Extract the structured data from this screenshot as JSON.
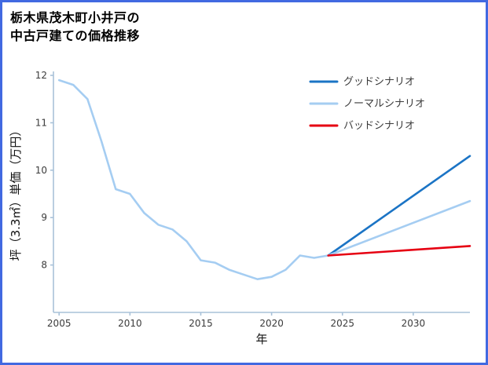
{
  "title": {
    "line1": "栃木県茂木町小井戸の",
    "line2": "中古戸建ての価格推移"
  },
  "colors": {
    "border": "#4169e1",
    "axis": "#a9c2d9",
    "good": "#1b74c5",
    "normal": "#a5cdf2",
    "bad": "#e60012"
  },
  "chart_data": {
    "type": "line",
    "title": "栃木県茂木町小井戸の中古戸建ての価格推移",
    "xlabel": "年",
    "ylabel": "坪（3.3㎡）単価（万円）",
    "xlim": [
      2004.6,
      2034
    ],
    "ylim": [
      7.0,
      12.05
    ],
    "xticks": [
      2005,
      2010,
      2015,
      2020,
      2025,
      2030
    ],
    "yticks": [
      8,
      9,
      10,
      11,
      12
    ],
    "grid": false,
    "legend_position": "upper right",
    "series": [
      {
        "id": "history",
        "color": "#a5cdf2",
        "legend": false,
        "x": [
          2005,
          2006,
          2007,
          2008,
          2009,
          2010,
          2011,
          2012,
          2013,
          2014,
          2015,
          2016,
          2017,
          2018,
          2019,
          2020,
          2021,
          2022,
          2023,
          2024
        ],
        "y": [
          11.9,
          11.8,
          11.5,
          10.6,
          9.6,
          9.5,
          9.1,
          8.85,
          8.75,
          8.5,
          8.1,
          8.05,
          7.9,
          7.8,
          7.7,
          7.75,
          7.9,
          8.2,
          8.15,
          8.2
        ]
      },
      {
        "id": "good",
        "name": "グッドシナリオ",
        "color": "#1b74c5",
        "legend": true,
        "x": [
          2024,
          2034
        ],
        "y": [
          8.2,
          10.3
        ]
      },
      {
        "id": "normal",
        "name": "ノーマルシナリオ",
        "color": "#a5cdf2",
        "legend": true,
        "x": [
          2024,
          2034
        ],
        "y": [
          8.2,
          9.35
        ]
      },
      {
        "id": "bad",
        "name": "バッドシナリオ",
        "color": "#e60012",
        "legend": true,
        "x": [
          2024,
          2034
        ],
        "y": [
          8.2,
          8.4
        ]
      }
    ]
  }
}
